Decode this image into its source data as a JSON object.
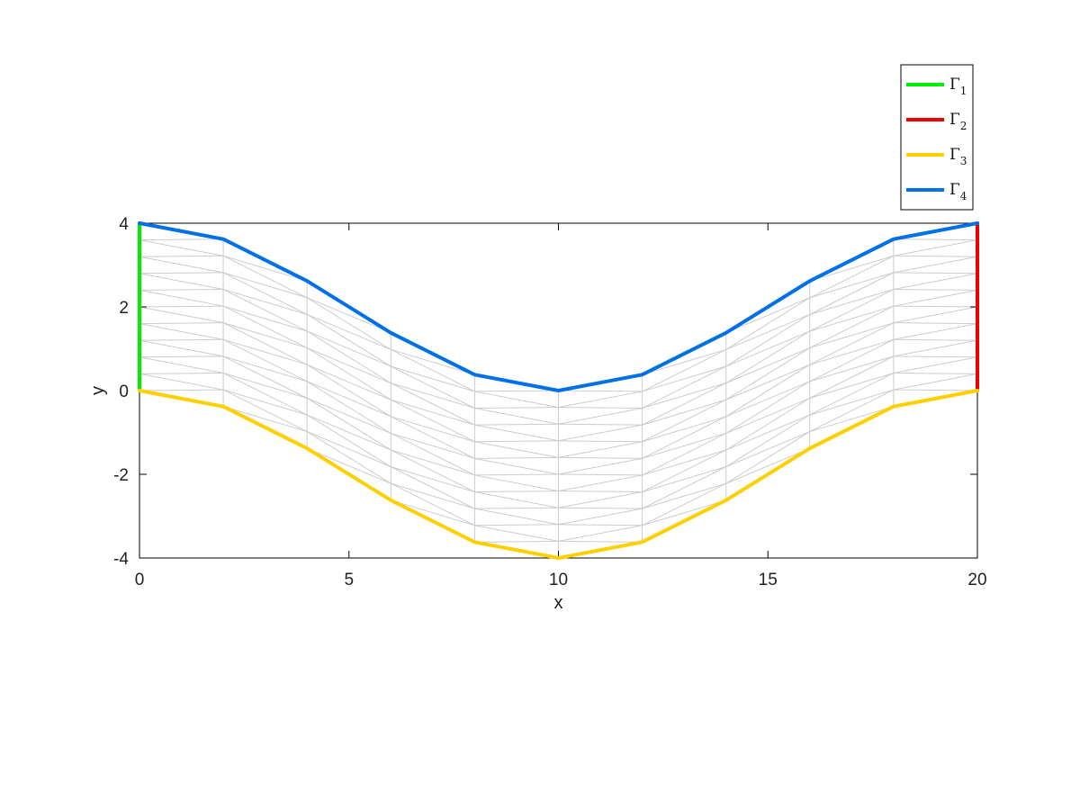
{
  "chart_data": {
    "type": "line",
    "title": "",
    "xlabel": "x",
    "ylabel": "y",
    "xlim": [
      0,
      20
    ],
    "ylim": [
      -4,
      4
    ],
    "xticks": [
      0,
      5,
      10,
      15,
      20
    ],
    "yticks": [
      -4,
      -2,
      0,
      2,
      4
    ],
    "grid": false,
    "legend_position": "outside-top-right",
    "mesh": {
      "color": "#cccccc",
      "x_columns": [
        0,
        2,
        4,
        6,
        8,
        10,
        12,
        14,
        16,
        18,
        20
      ],
      "rows": 10
    },
    "series": [
      {
        "name": "Γ1",
        "name_base": "Γ",
        "name_sub": "1",
        "color": "#00ee00",
        "x": [
          0,
          0
        ],
        "y": [
          0,
          4
        ]
      },
      {
        "name": "Γ2",
        "name_base": "Γ",
        "name_sub": "2",
        "color": "#ee0000",
        "x": [
          20,
          20
        ],
        "y": [
          0,
          4
        ]
      },
      {
        "name": "Γ3",
        "name_base": "Γ",
        "name_sub": "3",
        "color": "#ffd000",
        "x": [
          0,
          2,
          4,
          6,
          8,
          10,
          12,
          14,
          16,
          18,
          20
        ],
        "y": [
          0,
          -0.38,
          -1.38,
          -2.62,
          -3.62,
          -4,
          -3.62,
          -2.62,
          -1.38,
          -0.38,
          0
        ]
      },
      {
        "name": "Γ4",
        "name_base": "Γ",
        "name_sub": "4",
        "color": "#0070e8",
        "x": [
          0,
          2,
          4,
          6,
          8,
          10,
          12,
          14,
          16,
          18,
          20
        ],
        "y": [
          4,
          3.62,
          2.62,
          1.38,
          0.38,
          0,
          0.38,
          1.38,
          2.62,
          3.62,
          4
        ]
      }
    ]
  }
}
